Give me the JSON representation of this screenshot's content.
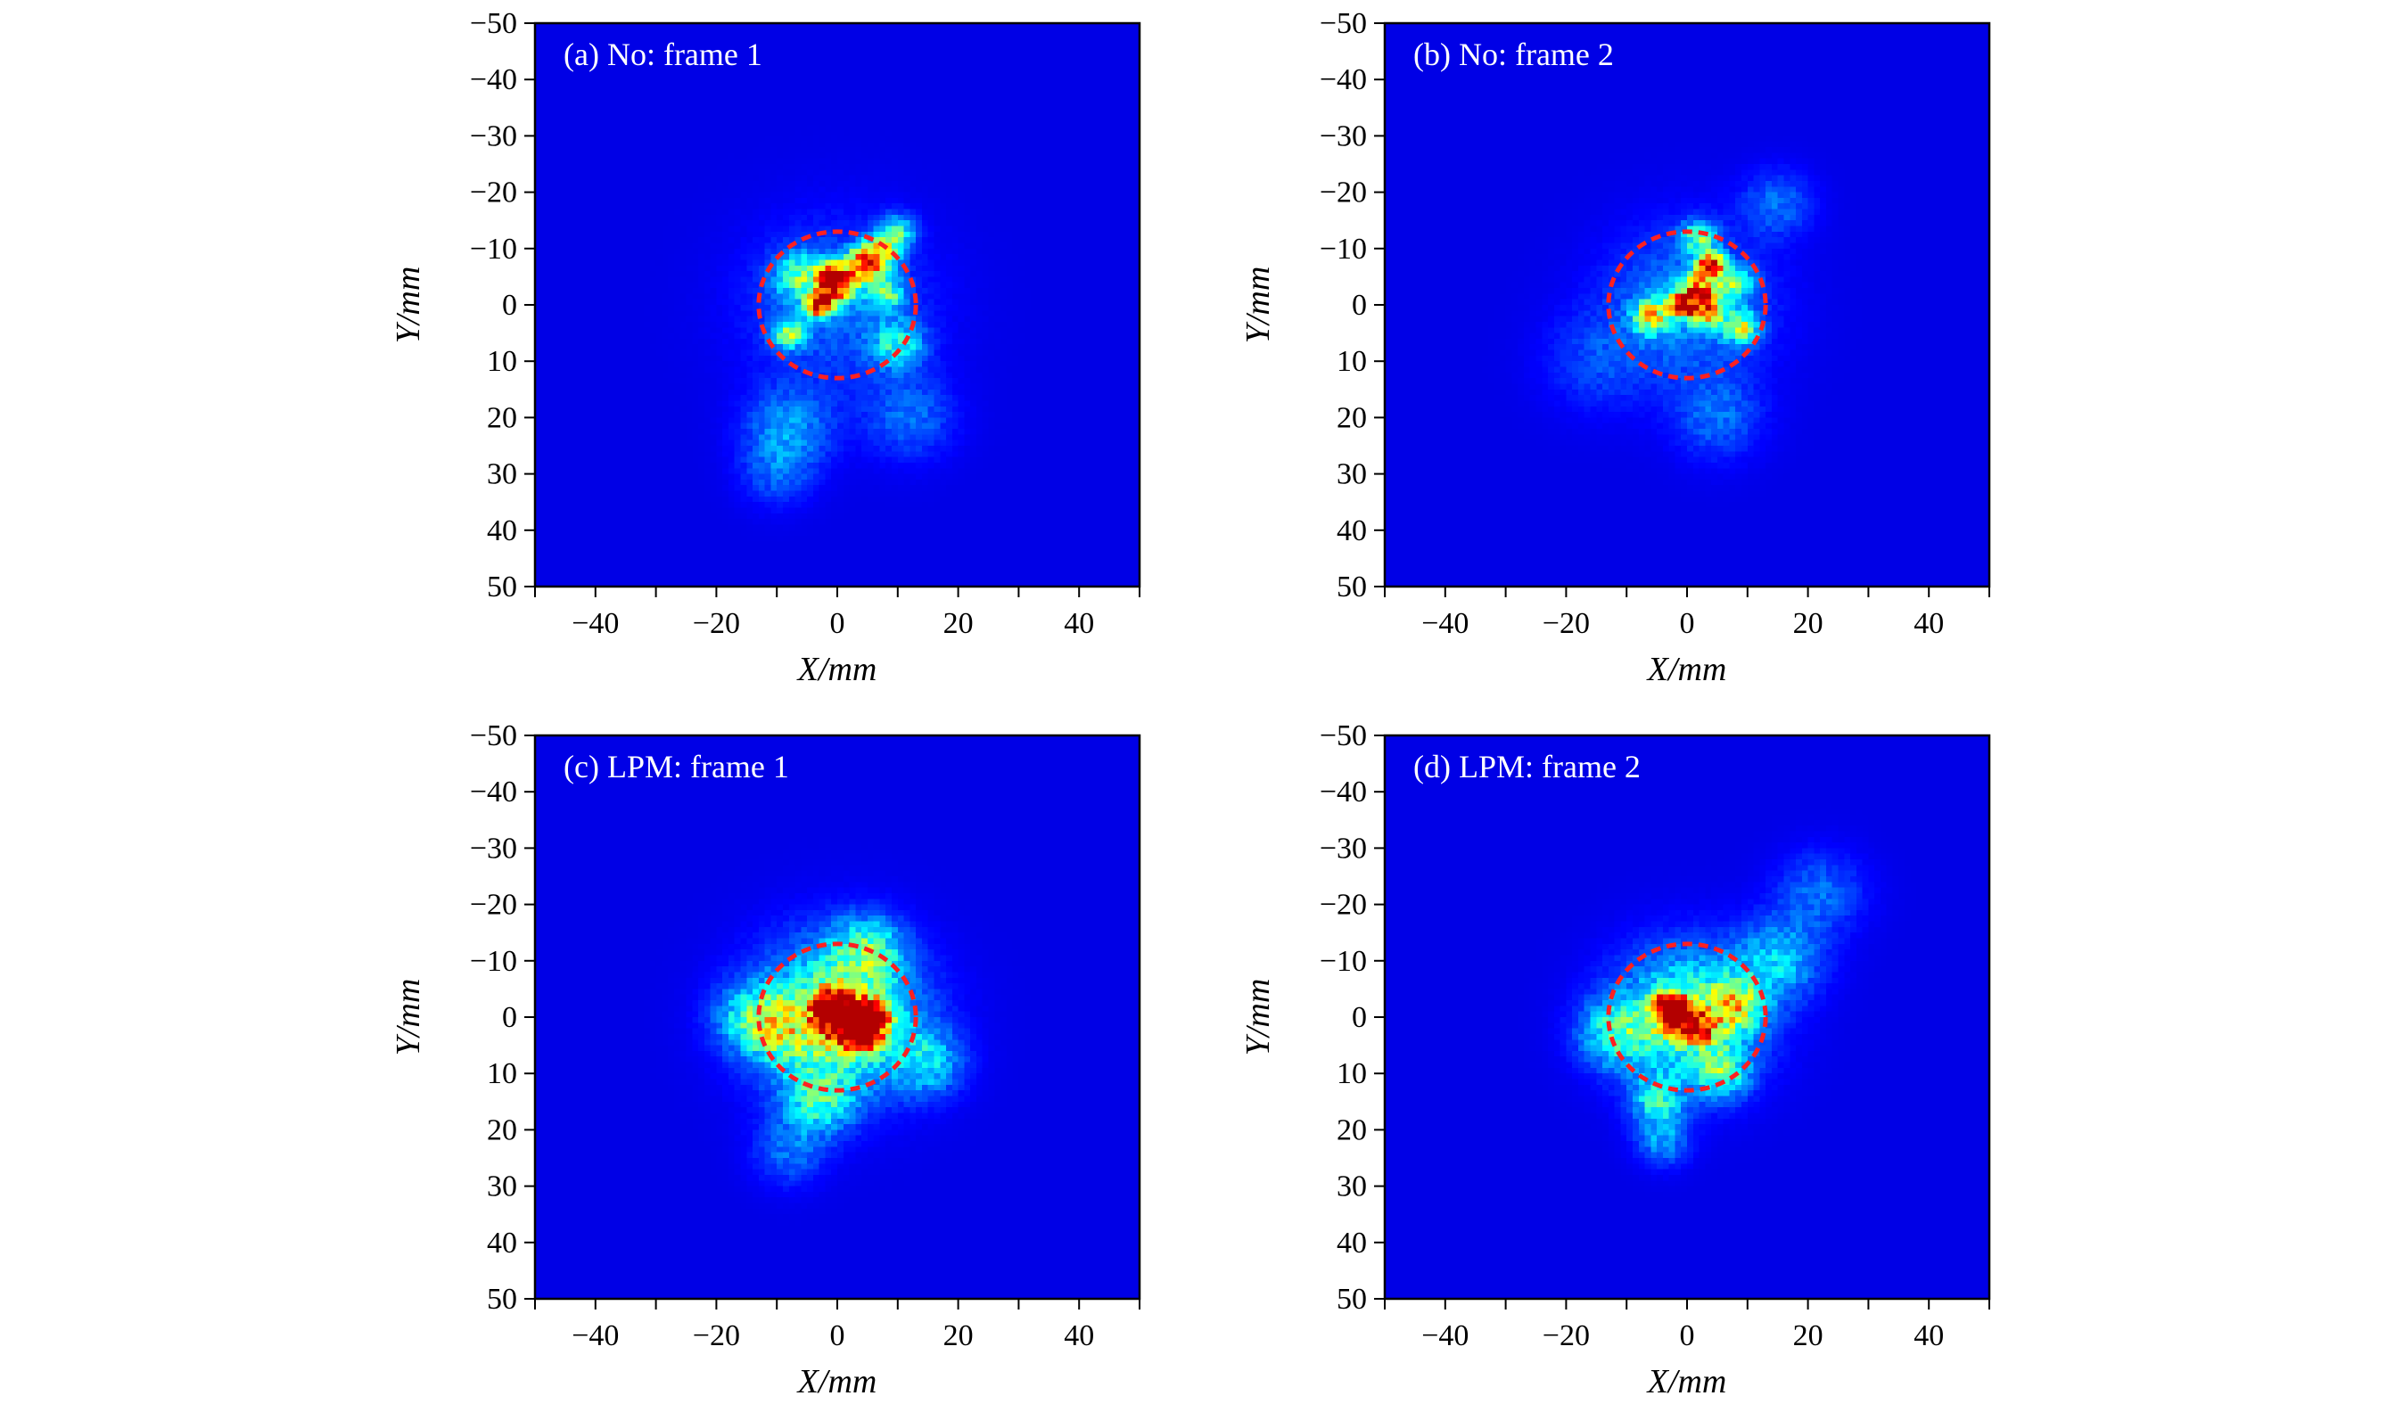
{
  "chart_data": [
    {
      "type": "heatmap",
      "title": "(a) No: frame 1",
      "xlabel": "X/mm",
      "ylabel": "Y/mm",
      "xlim": [
        -50,
        50
      ],
      "ylim": [
        50,
        -50
      ],
      "xticks": [
        -40,
        -20,
        0,
        20,
        40
      ],
      "yticks": [
        -50,
        -40,
        -30,
        -20,
        -10,
        0,
        10,
        20,
        30,
        40,
        50
      ],
      "colormap": "jet",
      "reference_circle": {
        "center": [
          0,
          0
        ],
        "radius": 13,
        "color": "#ff2020",
        "style": "dashed"
      },
      "hotspots": [
        {
          "x": -1,
          "y": -5,
          "intensity": 1.0,
          "sigma": 1.5
        },
        {
          "x": -3,
          "y": 0,
          "intensity": 0.85,
          "sigma": 1.5
        },
        {
          "x": 4,
          "y": -7,
          "intensity": 0.75,
          "sigma": 2
        },
        {
          "x": 7,
          "y": -9,
          "intensity": 0.6,
          "sigma": 2
        },
        {
          "x": 0,
          "y": -3,
          "intensity": 0.6,
          "sigma": 2
        },
        {
          "x": 10,
          "y": -13,
          "intensity": 0.35,
          "sigma": 2
        },
        {
          "x": 8,
          "y": -2,
          "intensity": 0.4,
          "sigma": 2
        },
        {
          "x": -6,
          "y": -5,
          "intensity": 0.35,
          "sigma": 3
        },
        {
          "x": -8,
          "y": 5,
          "intensity": 0.4,
          "sigma": 2
        },
        {
          "x": 10,
          "y": 7,
          "intensity": 0.3,
          "sigma": 3
        },
        {
          "x": 0,
          "y": 0,
          "intensity": 0.15,
          "sigma": 10
        },
        {
          "x": -8,
          "y": 22,
          "intensity": 0.2,
          "sigma": 5
        },
        {
          "x": -10,
          "y": 30,
          "intensity": 0.12,
          "sigma": 4
        },
        {
          "x": 12,
          "y": 20,
          "intensity": 0.15,
          "sigma": 5
        }
      ]
    },
    {
      "type": "heatmap",
      "title": "(b) No: frame 2",
      "xlabel": "X/mm",
      "ylabel": "Y/mm",
      "xlim": [
        -50,
        50
      ],
      "ylim": [
        50,
        -50
      ],
      "xticks": [
        -40,
        -20,
        0,
        20,
        40
      ],
      "yticks": [
        -50,
        -40,
        -30,
        -20,
        -10,
        0,
        10,
        20,
        30,
        40,
        50
      ],
      "colormap": "jet",
      "reference_circle": {
        "center": [
          0,
          0
        ],
        "radius": 13,
        "color": "#ff2020",
        "style": "dashed"
      },
      "hotspots": [
        {
          "x": 4,
          "y": -7,
          "intensity": 0.9,
          "sigma": 1.5
        },
        {
          "x": 2,
          "y": -3,
          "intensity": 0.6,
          "sigma": 2
        },
        {
          "x": -1,
          "y": 0,
          "intensity": 0.75,
          "sigma": 1.5
        },
        {
          "x": 3,
          "y": 1,
          "intensity": 0.6,
          "sigma": 2
        },
        {
          "x": -6,
          "y": 2,
          "intensity": 0.5,
          "sigma": 2
        },
        {
          "x": 9,
          "y": 4,
          "intensity": 0.45,
          "sigma": 2
        },
        {
          "x": 8,
          "y": -4,
          "intensity": 0.4,
          "sigma": 2
        },
        {
          "x": 2,
          "y": -12,
          "intensity": 0.4,
          "sigma": 2
        },
        {
          "x": 0,
          "y": 0,
          "intensity": 0.2,
          "sigma": 9
        },
        {
          "x": 5,
          "y": 20,
          "intensity": 0.15,
          "sigma": 5
        },
        {
          "x": -15,
          "y": 10,
          "intensity": 0.1,
          "sigma": 6
        },
        {
          "x": 15,
          "y": -18,
          "intensity": 0.15,
          "sigma": 4
        }
      ]
    },
    {
      "type": "heatmap",
      "title": "(c) LPM: frame 1",
      "xlabel": "X/mm",
      "ylabel": "Y/mm",
      "xlim": [
        -50,
        50
      ],
      "ylim": [
        50,
        -50
      ],
      "xticks": [
        -40,
        -20,
        0,
        20,
        40
      ],
      "yticks": [
        -50,
        -40,
        -30,
        -20,
        -10,
        0,
        10,
        20,
        30,
        40,
        50
      ],
      "colormap": "jet",
      "reference_circle": {
        "center": [
          0,
          0
        ],
        "radius": 13,
        "color": "#ff2020",
        "style": "dashed"
      },
      "hotspots": [
        {
          "x": 4,
          "y": 3,
          "intensity": 1.0,
          "sigma": 2
        },
        {
          "x": 1,
          "y": 0,
          "intensity": 0.75,
          "sigma": 3
        },
        {
          "x": -1,
          "y": -2,
          "intensity": 0.6,
          "sigma": 2
        },
        {
          "x": 6,
          "y": 0,
          "intensity": 0.7,
          "sigma": 2
        },
        {
          "x": 0,
          "y": 0,
          "intensity": 0.5,
          "sigma": 9
        },
        {
          "x": -10,
          "y": 2,
          "intensity": 0.3,
          "sigma": 4
        },
        {
          "x": 5,
          "y": -12,
          "intensity": 0.3,
          "sigma": 4
        },
        {
          "x": -3,
          "y": 15,
          "intensity": 0.3,
          "sigma": 4
        },
        {
          "x": -8,
          "y": 24,
          "intensity": 0.15,
          "sigma": 4
        },
        {
          "x": 15,
          "y": 8,
          "intensity": 0.25,
          "sigma": 4
        },
        {
          "x": -15,
          "y": 0,
          "intensity": 0.2,
          "sigma": 4
        }
      ]
    },
    {
      "type": "heatmap",
      "title": "(d) LPM: frame 2",
      "xlabel": "X/mm",
      "ylabel": "Y/mm",
      "xlim": [
        -50,
        50
      ],
      "ylim": [
        50,
        -50
      ],
      "xticks": [
        -40,
        -20,
        0,
        20,
        40
      ],
      "yticks": [
        -50,
        -40,
        -30,
        -20,
        -10,
        0,
        10,
        20,
        30,
        40,
        50
      ],
      "colormap": "jet",
      "reference_circle": {
        "center": [
          0,
          0
        ],
        "radius": 13,
        "color": "#ff2020",
        "style": "dashed"
      },
      "hotspots": [
        {
          "x": -3,
          "y": -2,
          "intensity": 1.0,
          "sigma": 1.5
        },
        {
          "x": -2,
          "y": 0,
          "intensity": 0.8,
          "sigma": 2
        },
        {
          "x": 2,
          "y": 2,
          "intensity": 0.55,
          "sigma": 2
        },
        {
          "x": 0,
          "y": 0,
          "intensity": 0.45,
          "sigma": 8
        },
        {
          "x": 8,
          "y": -2,
          "intensity": 0.4,
          "sigma": 3
        },
        {
          "x": -5,
          "y": 15,
          "intensity": 0.3,
          "sigma": 3
        },
        {
          "x": -4,
          "y": 22,
          "intensity": 0.2,
          "sigma": 3
        },
        {
          "x": 15,
          "y": -10,
          "intensity": 0.25,
          "sigma": 5
        },
        {
          "x": 22,
          "y": -22,
          "intensity": 0.15,
          "sigma": 5
        },
        {
          "x": -12,
          "y": 3,
          "intensity": 0.3,
          "sigma": 4
        },
        {
          "x": 6,
          "y": 10,
          "intensity": 0.3,
          "sigma": 3
        }
      ]
    }
  ]
}
